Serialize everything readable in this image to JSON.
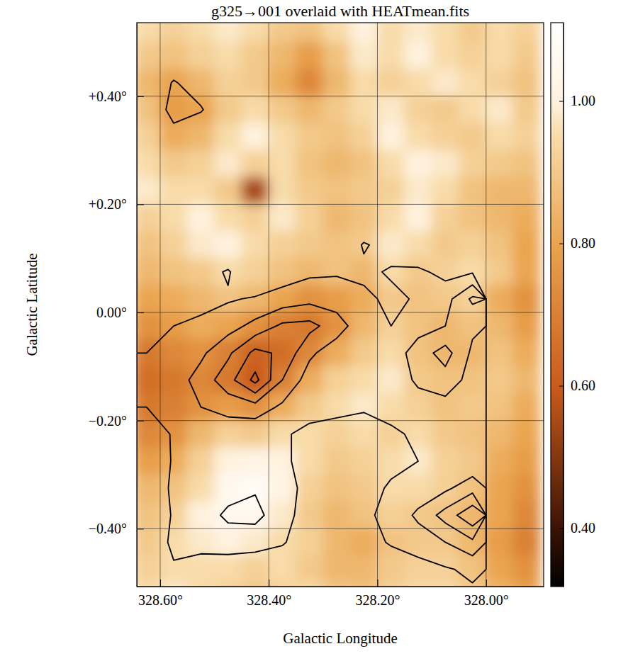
{
  "chart_data": {
    "type": "heatmap",
    "title": "g325→001 overlaid with HEATmean.fits",
    "x_label": "Galactic Longitude",
    "y_label": "Galactic Latitude",
    "x": [
      328.625,
      328.575,
      328.525,
      328.475,
      328.425,
      328.375,
      328.325,
      328.275,
      328.225,
      328.175,
      328.125,
      328.075,
      328.025,
      327.975,
      327.925
    ],
    "y": [
      0.525,
      0.475,
      0.425,
      0.375,
      0.325,
      0.275,
      0.225,
      0.175,
      0.125,
      0.075,
      0.025,
      -0.025,
      -0.075,
      -0.125,
      -0.175,
      -0.225,
      -0.275,
      -0.325,
      -0.375,
      -0.425,
      -0.475,
      -0.525
    ],
    "z": [
      [
        0.95,
        0.92,
        0.95,
        0.98,
        0.95,
        0.9,
        0.88,
        0.95,
        1.0,
        0.95,
        0.98,
        0.95,
        0.9,
        0.95,
        0.92
      ],
      [
        0.9,
        0.88,
        0.92,
        0.95,
        0.9,
        0.85,
        0.78,
        0.88,
        0.98,
        0.95,
        1.0,
        0.95,
        0.92,
        0.95,
        0.9
      ],
      [
        0.85,
        0.8,
        0.85,
        0.92,
        0.9,
        0.82,
        0.72,
        0.85,
        0.95,
        0.92,
        0.95,
        0.98,
        0.95,
        0.92,
        0.88
      ],
      [
        0.88,
        0.78,
        0.8,
        0.9,
        0.95,
        0.9,
        0.85,
        0.9,
        0.95,
        0.98,
        0.92,
        0.9,
        0.95,
        0.98,
        0.9
      ],
      [
        0.92,
        0.82,
        0.85,
        0.95,
        1.0,
        0.95,
        0.9,
        0.88,
        0.92,
        1.0,
        0.95,
        0.92,
        0.9,
        0.95,
        0.92
      ],
      [
        0.95,
        0.9,
        0.92,
        0.98,
        0.92,
        0.95,
        0.88,
        0.85,
        0.88,
        0.95,
        1.0,
        0.98,
        0.92,
        0.9,
        0.88
      ],
      [
        0.98,
        0.95,
        0.95,
        0.9,
        0.55,
        0.95,
        0.9,
        0.88,
        0.9,
        0.92,
        0.98,
        0.95,
        0.88,
        0.85,
        0.85
      ],
      [
        0.92,
        0.95,
        1.0,
        0.95,
        0.92,
        0.98,
        0.92,
        0.85,
        0.88,
        0.95,
        1.0,
        0.92,
        0.88,
        0.85,
        0.82
      ],
      [
        0.88,
        0.92,
        0.98,
        1.0,
        0.95,
        0.92,
        0.9,
        0.88,
        0.9,
        0.98,
        0.95,
        0.9,
        0.92,
        0.88,
        0.8
      ],
      [
        0.85,
        0.88,
        0.9,
        0.95,
        0.92,
        0.88,
        0.85,
        0.88,
        0.85,
        0.95,
        0.9,
        0.92,
        0.95,
        0.9,
        0.8
      ],
      [
        0.8,
        0.82,
        0.85,
        0.88,
        0.85,
        0.8,
        0.75,
        0.78,
        0.82,
        0.9,
        0.88,
        0.9,
        0.92,
        0.82,
        0.75
      ],
      [
        0.75,
        0.78,
        0.82,
        0.8,
        0.75,
        0.7,
        0.68,
        0.75,
        0.85,
        0.92,
        0.88,
        0.85,
        0.88,
        0.85,
        0.78
      ],
      [
        0.68,
        0.72,
        0.75,
        0.7,
        0.62,
        0.65,
        0.72,
        0.82,
        0.9,
        0.95,
        0.88,
        0.85,
        0.85,
        0.88,
        0.82
      ],
      [
        0.65,
        0.68,
        0.72,
        0.68,
        0.6,
        0.7,
        0.82,
        0.92,
        0.95,
        0.98,
        0.9,
        0.88,
        0.88,
        0.9,
        0.85
      ],
      [
        0.68,
        0.7,
        0.75,
        0.78,
        0.75,
        0.82,
        0.9,
        0.95,
        0.98,
        0.95,
        0.92,
        0.88,
        0.9,
        0.88,
        0.82
      ],
      [
        0.72,
        0.75,
        0.85,
        0.92,
        0.9,
        0.95,
        0.95,
        0.92,
        0.95,
        0.92,
        0.95,
        0.9,
        0.88,
        0.85,
        0.8
      ],
      [
        0.78,
        0.82,
        0.92,
        1.0,
        1.02,
        1.0,
        0.95,
        0.9,
        0.92,
        0.95,
        0.98,
        0.92,
        0.9,
        0.82,
        0.78
      ],
      [
        0.85,
        0.88,
        0.95,
        1.05,
        1.08,
        1.02,
        0.92,
        0.88,
        0.9,
        0.95,
        0.95,
        0.92,
        0.88,
        0.8,
        0.75
      ],
      [
        0.88,
        0.92,
        1.0,
        1.05,
        1.05,
        0.98,
        0.9,
        0.85,
        0.88,
        0.92,
        0.9,
        0.88,
        0.85,
        0.8,
        0.72
      ],
      [
        0.9,
        0.95,
        0.98,
        1.0,
        0.98,
        0.95,
        0.92,
        0.85,
        0.82,
        0.88,
        0.9,
        0.9,
        0.85,
        0.78,
        0.7
      ],
      [
        0.92,
        0.95,
        0.95,
        0.95,
        0.92,
        0.95,
        0.9,
        0.85,
        0.85,
        0.9,
        0.92,
        0.92,
        0.88,
        0.8,
        0.75
      ],
      [
        0.95,
        0.98,
        0.95,
        0.92,
        0.9,
        0.92,
        0.95,
        0.9,
        0.88,
        0.92,
        0.95,
        0.95,
        0.9,
        0.85,
        0.8
      ]
    ],
    "xlim": [
      328.643,
      327.894
    ],
    "ylim": [
      -0.507,
      0.536
    ],
    "xticks": [
      {
        "value": 328.6,
        "label": "328.60°"
      },
      {
        "value": 328.4,
        "label": "328.40°"
      },
      {
        "value": 328.2,
        "label": "328.20°"
      },
      {
        "value": 328.0,
        "label": "328.00°"
      }
    ],
    "yticks": [
      {
        "value": 0.4,
        "label": "+0.40°"
      },
      {
        "value": 0.2,
        "label": "+0.20°"
      },
      {
        "value": 0,
        "label": "0.00°"
      },
      {
        "value": -0.2,
        "label": "−0.20°"
      },
      {
        "value": -0.4,
        "label": "−0.40°"
      }
    ],
    "grid": true,
    "colorbar": {
      "range": [
        0.318,
        1.11
      ],
      "ticks": [
        {
          "value": 0.4,
          "label": "0.40"
        },
        {
          "value": 0.6,
          "label": "0.60"
        },
        {
          "value": 0.8,
          "label": "0.80"
        },
        {
          "value": 1.0,
          "label": "1.00"
        }
      ]
    },
    "contours": {
      "color": "#000000",
      "levels": [
        1,
        2,
        3,
        4,
        5
      ],
      "x": [
        328.625,
        328.575,
        328.525,
        328.475,
        328.425,
        328.375,
        328.325,
        328.275,
        328.225,
        328.175,
        328.125,
        328.075,
        328.025
      ],
      "y": [
        0.475,
        0.425,
        0.375,
        0.325,
        0.275,
        0.225,
        0.175,
        0.125,
        0.075,
        0.025,
        -0.025,
        -0.075,
        -0.125,
        -0.175,
        -0.225,
        -0.275,
        -0.325,
        -0.375,
        -0.425,
        -0.475
      ],
      "z": [
        [
          0,
          0,
          0,
          0,
          0,
          0,
          0,
          0,
          0,
          0,
          0,
          0,
          0
        ],
        [
          0,
          1.1,
          0.4,
          0,
          0,
          0,
          0,
          0,
          0,
          0,
          0,
          0,
          0
        ],
        [
          0,
          1.4,
          1.1,
          0,
          0,
          0,
          0,
          0,
          0,
          0,
          0,
          0,
          0
        ],
        [
          0,
          0.6,
          0,
          0,
          0,
          0,
          0,
          0,
          0,
          0,
          0,
          0,
          0
        ],
        [
          0,
          0,
          0,
          0,
          0,
          0,
          0,
          0,
          0,
          0,
          0,
          0,
          0
        ],
        [
          0,
          0,
          0,
          0,
          0,
          0,
          0,
          0,
          0,
          0,
          0,
          0,
          0
        ],
        [
          0,
          0,
          0,
          0,
          0,
          0,
          0,
          0,
          0,
          0,
          0,
          0,
          0
        ],
        [
          0,
          0,
          0,
          0,
          0,
          0,
          0,
          0,
          1.1,
          0.6,
          0,
          0,
          0
        ],
        [
          0,
          0,
          0.6,
          1.1,
          0,
          0.5,
          0.8,
          0.9,
          0.8,
          1.1,
          1.2,
          0.7,
          0.9
        ],
        [
          0.3,
          0.5,
          0.7,
          0.9,
          1.1,
          1.4,
          1.7,
          1.5,
          1.2,
          0.8,
          1.1,
          1.6,
          3.2
        ],
        [
          0.7,
          1.0,
          1.2,
          1.6,
          2.3,
          3.2,
          3.3,
          2.5,
          1.3,
          1.0,
          1.6,
          2.0,
          2.2
        ],
        [
          1.0,
          1.3,
          1.8,
          2.8,
          4.3,
          3.8,
          2.2,
          1.4,
          1.1,
          1.4,
          2.5,
          3.4,
          1.8
        ],
        [
          1.1,
          1.5,
          2.4,
          3.6,
          5.3,
          3.0,
          1.5,
          1.2,
          1.1,
          1.3,
          2.2,
          2.6,
          1.6
        ],
        [
          1.0,
          1.4,
          2.0,
          2.4,
          2.6,
          1.8,
          1.3,
          1.2,
          1.1,
          1.2,
          1.5,
          1.6,
          1.3
        ],
        [
          0.4,
          1.1,
          1.5,
          1.3,
          1.2,
          1.1,
          0.8,
          0.7,
          0.6,
          0.9,
          1.1,
          1.2,
          1.1
        ],
        [
          0.2,
          1.1,
          1.3,
          1.3,
          1.4,
          1.2,
          0.6,
          0.4,
          0.5,
          0.8,
          1.0,
          1.1,
          1.2
        ],
        [
          0.2,
          1.2,
          1.4,
          1.6,
          1.9,
          1.5,
          0.6,
          0.4,
          0.7,
          1.1,
          1.4,
          1.8,
          2.6
        ],
        [
          0.2,
          1.1,
          1.5,
          2.2,
          2.3,
          1.4,
          0.5,
          0.4,
          0.8,
          1.3,
          2.2,
          3.4,
          4.8
        ],
        [
          0.3,
          1.2,
          1.3,
          1.5,
          1.4,
          1.1,
          0.4,
          0.3,
          0.6,
          1.1,
          1.5,
          2.0,
          2.8
        ],
        [
          0.2,
          0.9,
          0.6,
          0.4,
          0.3,
          0.3,
          0.2,
          0.1,
          0.2,
          0.4,
          0.6,
          0.9,
          1.2
        ]
      ]
    }
  }
}
